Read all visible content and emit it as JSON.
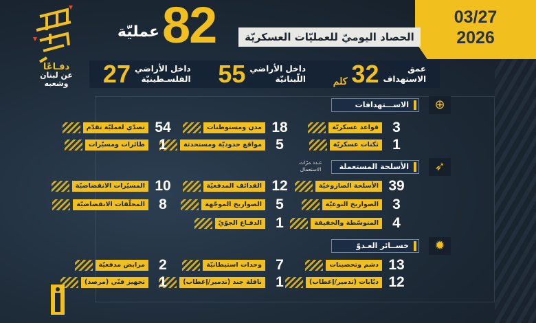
{
  "header": {
    "date_line1": "03/27",
    "date_line2": "2026",
    "title": "الحصاد اليوميّ للعمليّات العسكريّة",
    "total_ops": "82",
    "ops_label": "عمليّة"
  },
  "logo": {
    "calligraphy": "إنا على العهد",
    "line1": "دفـاعًا",
    "line2": "عن لبنان وشعبه"
  },
  "stats": [
    {
      "label1": "عمق",
      "label2": "الاستهداف",
      "value": "32",
      "unit": "كلم"
    },
    {
      "label1": "داخل الأراضي",
      "label2": "اللّبنانيّة",
      "value": "55"
    },
    {
      "label1": "داخل الأراضي",
      "label2": "الفلسـطينيّة",
      "value": "27"
    }
  ],
  "sections": {
    "targets": {
      "title": "الاســـتهدافات",
      "icon": "crosshair-icon",
      "items": [
        {
          "value": "3",
          "label": "قواعد عسكريّة"
        },
        {
          "value": "18",
          "label": "مدن ومستوطنات"
        },
        {
          "value": "54",
          "label": "تصدّي لعمليّة تقدّم"
        },
        {
          "value": "1",
          "label": "ثكنات عسكريّة"
        },
        {
          "value": "5",
          "label": "مواقع حدوديّة ومستحدثة"
        },
        {
          "value": "1",
          "label": "طائرات ومسيّرات"
        }
      ]
    },
    "weapons": {
      "title": "الأسلحة المستعملة",
      "icon": "missiles-icon",
      "uses_label": "عـدد مرّات الاستعمال",
      "items": [
        {
          "value": "39",
          "label": "الأسلحة الصاروخيّة"
        },
        {
          "value": "12",
          "label": "القذائف المدفعيّة"
        },
        {
          "value": "10",
          "label": "المسيّرات الانقضاضيّة"
        },
        {
          "value": "3",
          "label": "الصواريخ النوعيّة"
        },
        {
          "value": "5",
          "label": "الصواريخ الموجّهة"
        },
        {
          "value": "8",
          "label": "المحلّقات الانقضاضيّة"
        },
        {
          "value": "4",
          "label": "المتوسّطة والخفيفة"
        },
        {
          "value": "1",
          "label": "الدفـاع الجوّيّ"
        }
      ]
    },
    "losses": {
      "title": "خســائر العـدوّ",
      "icon": "tank-explosion-icon",
      "items": [
        {
          "value": "13",
          "label": "دشم وتحصينات"
        },
        {
          "value": "7",
          "label": "وحدات استيطانيّة"
        },
        {
          "value": "2",
          "label": "مرابض مدفعيّة"
        },
        {
          "value": "12",
          "label": "دبّابات (تدمير/إعطاب)"
        },
        {
          "value": "1",
          "label": "ناقلة جند (تدمير/إعطاب)"
        },
        {
          "value": "1",
          "label": "تجهيز فنّي (مرصد)"
        }
      ]
    }
  },
  "colors": {
    "accent": "#f2c01e",
    "background": "#1b2631",
    "banner": "#e8e8e4"
  }
}
